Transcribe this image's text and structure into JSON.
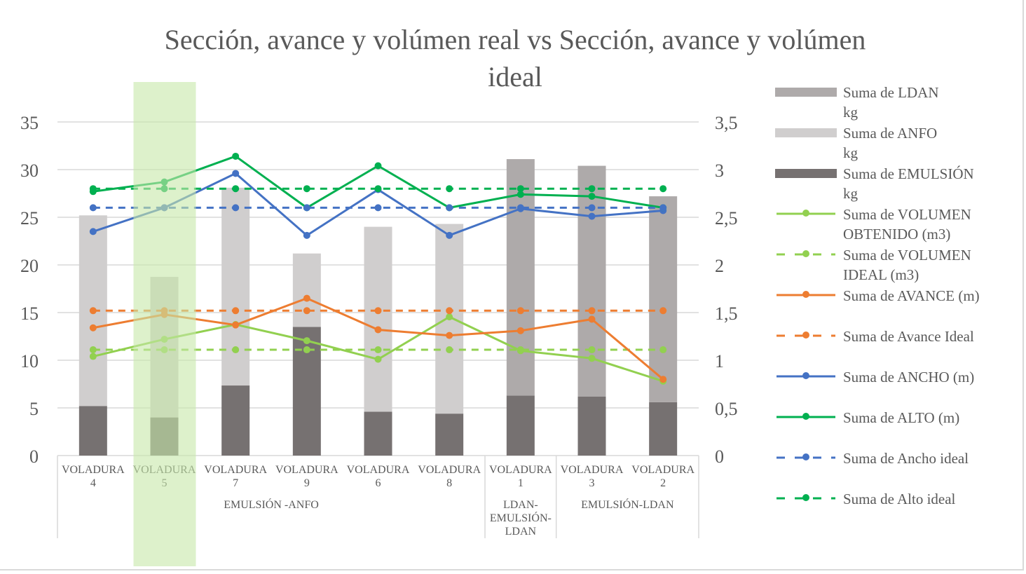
{
  "chart_data": {
    "type": "bar",
    "title": "Sección, avance y volúmen real vs Sección, avance y volúmen ideal",
    "categories": [
      "VOLADURA 4",
      "VOLADURA 5",
      "VOLADURA 7",
      "VOLADURA 9",
      "VOLADURA 6",
      "VOLADURA 8",
      "VOLADURA 1",
      "VOLADURA 3",
      "VOLADURA 2"
    ],
    "category_groups": [
      {
        "label": "EMULSIÓN -ANFO",
        "count": 6
      },
      {
        "label": "LDAN-\nEMULSIÓN-\nLDAN",
        "count": 1
      },
      {
        "label": "EMULSIÓN-LDAN",
        "count": 2
      }
    ],
    "highlighted_category": "VOLADURA 5",
    "highlight_color": "#c6e8a8",
    "primary_axis": {
      "ylim": [
        0,
        35
      ],
      "ticks": [
        "0",
        "5",
        "10",
        "15",
        "20",
        "25",
        "30",
        "35"
      ]
    },
    "secondary_axis": {
      "ylim": [
        0,
        3.5
      ],
      "ticks": [
        "0",
        "0,5",
        "1",
        "1,5",
        "2",
        "2,5",
        "3",
        "3,5"
      ]
    },
    "grid": true,
    "legend_position": "right",
    "series": [
      {
        "name": "Suma de LDAN\nkg",
        "kind": "bar-stacked",
        "axis": "primary",
        "color": "#aeaaaa",
        "values": [
          0,
          0,
          0,
          0,
          0,
          0,
          24.8,
          24.2,
          21.6
        ]
      },
      {
        "name": "Suma de ANFO\n kg",
        "kind": "bar-stacked",
        "axis": "primary",
        "color": "#d0cece",
        "values": [
          20.0,
          14.75,
          20.75,
          7.7,
          19.4,
          19.9,
          0,
          0,
          0
        ]
      },
      {
        "name": "Suma de EMULSIÓN\nkg",
        "kind": "bar-stacked",
        "axis": "primary",
        "color": "#767171",
        "values": [
          5.2,
          4.0,
          7.35,
          13.5,
          4.6,
          4.4,
          6.3,
          6.2,
          5.6
        ]
      },
      {
        "name": "Suma de VOLUMEN\nOBTENIDO (m3)",
        "kind": "line",
        "axis": "primary",
        "color": "#92d050",
        "dashed": false,
        "values": [
          10.4,
          12.2,
          13.75,
          12.05,
          10.1,
          14.55,
          11.0,
          10.2,
          7.8
        ]
      },
      {
        "name": "Suma de VOLUMEN\nIDEAL (m3)",
        "kind": "line",
        "axis": "primary",
        "color": "#92d050",
        "dashed": true,
        "values": [
          11.1,
          11.1,
          11.1,
          11.1,
          11.1,
          11.1,
          11.1,
          11.1,
          11.1
        ]
      },
      {
        "name": "Suma de AVANCE  (m)",
        "kind": "line",
        "axis": "secondary",
        "color": "#ed7d31",
        "dashed": false,
        "values": [
          1.34,
          1.48,
          1.37,
          1.65,
          1.32,
          1.26,
          1.31,
          1.43,
          0.8
        ]
      },
      {
        "name": "Suma de Avance Ideal",
        "kind": "line",
        "axis": "secondary",
        "color": "#ed7d31",
        "dashed": true,
        "values": [
          1.52,
          1.52,
          1.52,
          1.52,
          1.52,
          1.52,
          1.52,
          1.52,
          1.52
        ]
      },
      {
        "name": "Suma de ANCHO (m)",
        "kind": "line",
        "axis": "secondary",
        "color": "#4472c4",
        "dashed": false,
        "values": [
          2.35,
          2.6,
          2.96,
          2.31,
          2.79,
          2.31,
          2.59,
          2.51,
          2.57
        ]
      },
      {
        "name": "Suma de ALTO (m)",
        "kind": "line",
        "axis": "secondary",
        "color": "#00b050",
        "dashed": false,
        "values": [
          2.77,
          2.87,
          3.14,
          2.6,
          3.04,
          2.6,
          2.74,
          2.72,
          2.6
        ]
      },
      {
        "name": "Suma de Ancho ideal",
        "kind": "line",
        "axis": "secondary",
        "color": "#4472c4",
        "dashed": true,
        "values": [
          2.6,
          2.6,
          2.6,
          2.6,
          2.6,
          2.6,
          2.6,
          2.6,
          2.6
        ]
      },
      {
        "name": "Suma de Alto ideal",
        "kind": "line",
        "axis": "secondary",
        "color": "#00b050",
        "dashed": true,
        "values": [
          2.8,
          2.8,
          2.8,
          2.8,
          2.8,
          2.8,
          2.8,
          2.8,
          2.8
        ]
      }
    ]
  }
}
